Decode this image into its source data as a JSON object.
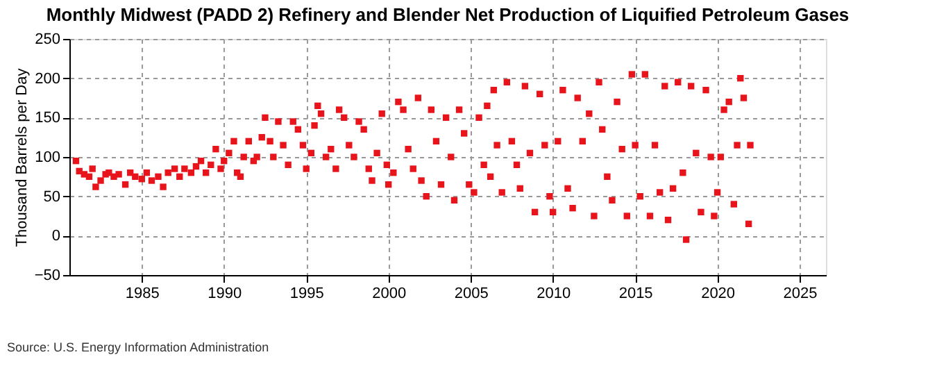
{
  "chart_data": {
    "type": "scatter",
    "title": "Monthly Midwest (PADD 2) Refinery and Blender Net Production of Liquified Petroleum Gases",
    "ylabel": "Thousand Barrels per Day",
    "annotations": [
      "Source: U.S. Energy Information Administration"
    ],
    "x": [
      1981.0,
      1981.2,
      1981.5,
      1981.8,
      1982.0,
      1982.2,
      1982.5,
      1982.8,
      1983.0,
      1983.3,
      1983.6,
      1984.0,
      1984.3,
      1984.6,
      1985.0,
      1985.3,
      1985.6,
      1986.0,
      1986.3,
      1986.6,
      1987.0,
      1987.3,
      1987.6,
      1988.0,
      1988.3,
      1988.6,
      1988.9,
      1989.2,
      1989.5,
      1989.8,
      1990.0,
      1990.3,
      1990.6,
      1990.8,
      1991.0,
      1991.2,
      1991.5,
      1991.8,
      1992.0,
      1992.3,
      1992.5,
      1992.8,
      1993.0,
      1993.3,
      1993.6,
      1993.9,
      1994.2,
      1994.5,
      1994.8,
      1995.0,
      1995.3,
      1995.5,
      1995.7,
      1995.9,
      1996.2,
      1996.5,
      1996.8,
      1997.0,
      1997.3,
      1997.6,
      1997.9,
      1998.2,
      1998.5,
      1998.8,
      1999.0,
      1999.3,
      1999.6,
      1999.9,
      2000.0,
      2000.3,
      2000.6,
      2000.9,
      2001.2,
      2001.5,
      2001.8,
      2002.0,
      2002.3,
      2002.6,
      2002.9,
      2003.2,
      2003.5,
      2003.8,
      2004.0,
      2004.3,
      2004.6,
      2004.9,
      2005.2,
      2005.5,
      2005.8,
      2006.0,
      2006.2,
      2006.4,
      2006.6,
      2006.9,
      2007.2,
      2007.5,
      2007.8,
      2008.0,
      2008.3,
      2008.6,
      2008.9,
      2009.2,
      2009.5,
      2009.8,
      2010.0,
      2010.3,
      2010.6,
      2010.9,
      2011.2,
      2011.5,
      2011.8,
      2012.2,
      2012.5,
      2012.8,
      2013.0,
      2013.3,
      2013.6,
      2013.9,
      2014.2,
      2014.5,
      2014.8,
      2015.0,
      2015.3,
      2015.6,
      2015.9,
      2016.2,
      2016.5,
      2016.8,
      2017.0,
      2017.3,
      2017.6,
      2017.9,
      2018.1,
      2018.4,
      2018.7,
      2019.0,
      2019.3,
      2019.6,
      2019.8,
      2020.0,
      2020.2,
      2020.4,
      2020.7,
      2021.0,
      2021.2,
      2021.4,
      2021.6,
      2021.9,
      2022.0
    ],
    "series": [
      {
        "color": "#e8141c",
        "values": [
          95,
          82,
          78,
          75,
          85,
          62,
          70,
          78,
          80,
          75,
          78,
          65,
          80,
          75,
          72,
          80,
          70,
          75,
          62,
          80,
          85,
          75,
          85,
          80,
          88,
          95,
          80,
          90,
          110,
          85,
          95,
          105,
          120,
          80,
          75,
          100,
          120,
          95,
          100,
          125,
          150,
          120,
          100,
          145,
          115,
          90,
          145,
          135,
          115,
          85,
          105,
          140,
          165,
          155,
          100,
          110,
          85,
          160,
          150,
          115,
          100,
          145,
          135,
          85,
          70,
          105,
          155,
          90,
          65,
          80,
          170,
          160,
          110,
          85,
          175,
          70,
          50,
          160,
          120,
          65,
          150,
          100,
          45,
          160,
          130,
          65,
          55,
          150,
          90,
          165,
          75,
          185,
          115,
          55,
          195,
          120,
          90,
          60,
          190,
          105,
          30,
          180,
          115,
          50,
          30,
          120,
          185,
          60,
          35,
          175,
          120,
          155,
          25,
          195,
          135,
          75,
          45,
          170,
          110,
          25,
          205,
          115,
          50,
          205,
          25,
          115,
          55,
          190,
          20,
          60,
          195,
          80,
          -5,
          190,
          105,
          30,
          185,
          100,
          25,
          55,
          100,
          160,
          170,
          40,
          115,
          200,
          175,
          15,
          115
        ]
      }
    ],
    "xlim": [
      1980.6,
      2026.6
    ],
    "xticks": [
      1985,
      1990,
      1995,
      2000,
      2005,
      2010,
      2015,
      2020,
      2025
    ],
    "ylim": [
      -50,
      250
    ],
    "yticks": [
      -50,
      0,
      50,
      100,
      150,
      200,
      250
    ],
    "grid": true,
    "marker": "square",
    "legend": false
  }
}
